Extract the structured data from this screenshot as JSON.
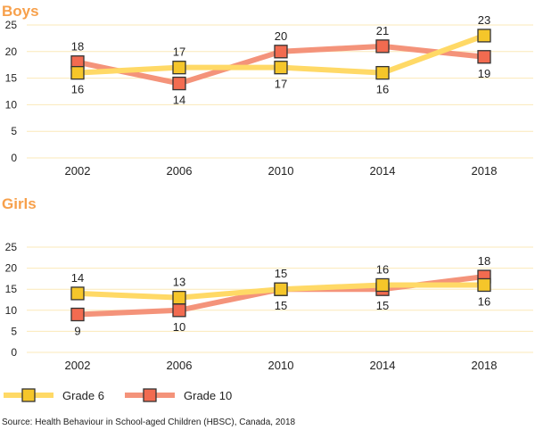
{
  "chart_data": [
    {
      "type": "line",
      "title": "Boys",
      "categories": [
        "2002",
        "2006",
        "2010",
        "2014",
        "2018"
      ],
      "ylim": [
        0,
        25
      ],
      "yticks": [
        "0",
        "5",
        "10",
        "15",
        "20",
        "25"
      ],
      "grid": true,
      "series": [
        {
          "name": "Grade 6",
          "values": [
            16,
            17,
            17,
            16,
            23
          ],
          "label_pos": [
            "below",
            "above",
            "below",
            "below",
            "above"
          ]
        },
        {
          "name": "Grade 10",
          "values": [
            18,
            14,
            20,
            21,
            19
          ],
          "label_pos": [
            "above",
            "below",
            "above",
            "above",
            "below"
          ]
        }
      ]
    },
    {
      "type": "line",
      "title": "Girls",
      "categories": [
        "2002",
        "2006",
        "2010",
        "2014",
        "2018"
      ],
      "ylim": [
        0,
        25
      ],
      "yticks": [
        "0",
        "5",
        "10",
        "15",
        "20",
        "25"
      ],
      "grid": true,
      "series": [
        {
          "name": "Grade 6",
          "values": [
            14,
            13,
            15,
            16,
            16
          ],
          "label_pos": [
            "above",
            "above",
            "below",
            "above",
            "below"
          ]
        },
        {
          "name": "Grade 10",
          "values": [
            9,
            10,
            15,
            15,
            18
          ],
          "label_pos": [
            "below",
            "below",
            "above",
            "below",
            "above"
          ]
        }
      ]
    }
  ],
  "legend": {
    "placement": "bottom-left",
    "items": [
      "Grade 6",
      "Grade 10"
    ]
  },
  "source": "Source: Health Behaviour in School-aged Children (HBSC), Canada, 2018",
  "colors": {
    "title": "#F7A04B",
    "grid": "#FBE9B8",
    "grade6_line": "#FFD966",
    "grade6_marker": "#F5C62A",
    "grade10_line": "#F4937A",
    "grade10_marker": "#F26B50"
  }
}
